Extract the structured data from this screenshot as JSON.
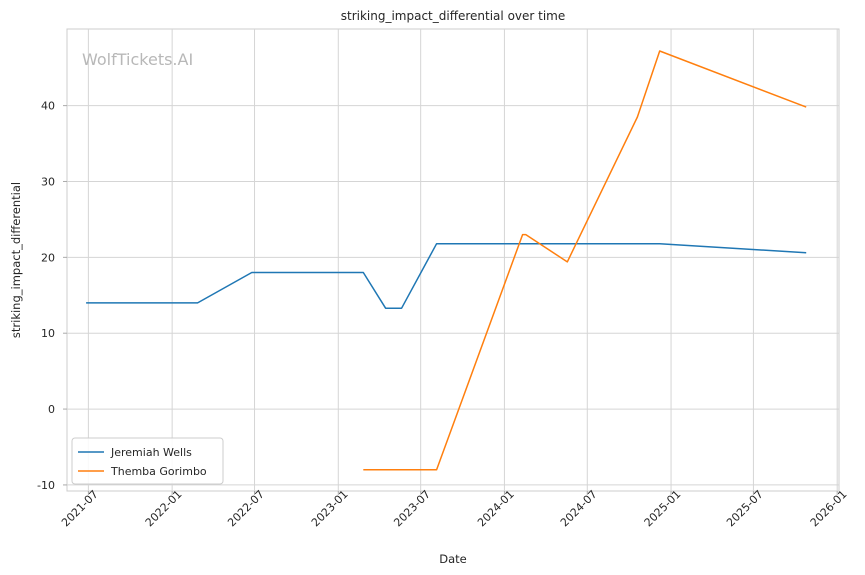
{
  "chart_data": {
    "type": "line",
    "title": "striking_impact_differential over time",
    "xlabel": "Date",
    "ylabel": "striking_impact_differential",
    "watermark": "WolfTickets.AI",
    "xlim": [
      "2021-05-15",
      "2026-01-05"
    ],
    "ylim": [
      -10.8,
      50.1
    ],
    "x_ticks": [
      "2021-07",
      "2022-01",
      "2022-07",
      "2023-01",
      "2023-07",
      "2024-01",
      "2024-07",
      "2025-01",
      "2025-07",
      "2026-01"
    ],
    "y_ticks": [
      -10,
      0,
      10,
      20,
      30,
      40
    ],
    "grid": true,
    "legend_position": "lower-left",
    "series": [
      {
        "name": "Jeremiah Wells",
        "color": "#1f77b4",
        "points": [
          {
            "x": "2021-06-26",
            "y": 14.0
          },
          {
            "x": "2022-02-26",
            "y": 14.0
          },
          {
            "x": "2022-06-25",
            "y": 18.0
          },
          {
            "x": "2023-02-25",
            "y": 18.0
          },
          {
            "x": "2023-04-15",
            "y": 13.3
          },
          {
            "x": "2023-05-20",
            "y": 13.3
          },
          {
            "x": "2023-08-05",
            "y": 21.8
          },
          {
            "x": "2024-02-10",
            "y": 21.8
          },
          {
            "x": "2024-12-07",
            "y": 21.8
          },
          {
            "x": "2025-10-25",
            "y": 20.6
          }
        ]
      },
      {
        "name": "Themba Gorimbo",
        "color": "#ff7f0e",
        "points": [
          {
            "x": "2023-02-25",
            "y": -8.0
          },
          {
            "x": "2023-08-05",
            "y": -8.0
          },
          {
            "x": "2024-02-10",
            "y": 23.0
          },
          {
            "x": "2024-02-17",
            "y": 23.0
          },
          {
            "x": "2024-05-18",
            "y": 19.4
          },
          {
            "x": "2024-10-19",
            "y": 38.5
          },
          {
            "x": "2024-12-07",
            "y": 47.2
          },
          {
            "x": "2025-10-25",
            "y": 39.8
          }
        ]
      }
    ]
  }
}
